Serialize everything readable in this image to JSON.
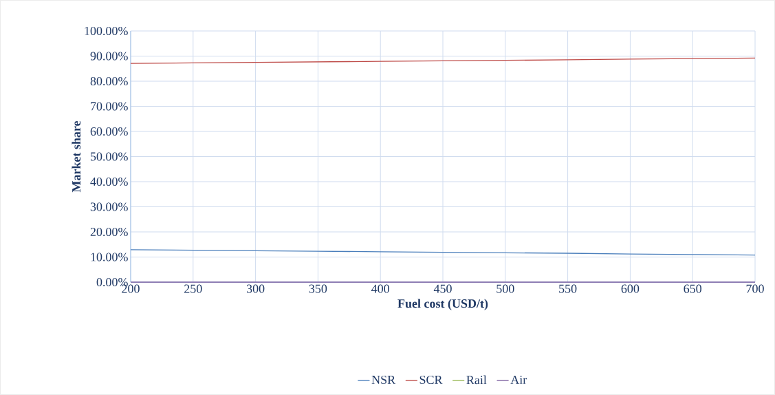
{
  "chart_data": {
    "type": "line",
    "xlabel": "Fuel cost (USD/t)",
    "ylabel": "Market share",
    "x": [
      200,
      250,
      300,
      350,
      400,
      450,
      500,
      550,
      600,
      650,
      700
    ],
    "series": [
      {
        "name": "NSR",
        "color": "#4a7ebb",
        "values": [
          12.9,
          12.7,
          12.5,
          12.3,
          12.1,
          11.9,
          11.7,
          11.5,
          11.2,
          11.0,
          10.8
        ]
      },
      {
        "name": "SCR",
        "color": "#be4b48",
        "values": [
          87.1,
          87.3,
          87.5,
          87.7,
          87.9,
          88.1,
          88.3,
          88.5,
          88.8,
          89.0,
          89.2
        ]
      },
      {
        "name": "Rail",
        "color": "#98b954",
        "values": [
          null,
          null,
          null,
          null,
          null,
          null,
          null,
          null,
          null,
          null,
          null
        ]
      },
      {
        "name": "Air",
        "color": "#7d60a0",
        "values": [
          0,
          0,
          0,
          0,
          0,
          0,
          0,
          0,
          0,
          0,
          0
        ]
      }
    ],
    "xlim": [
      200,
      700
    ],
    "ylim": [
      0,
      100
    ],
    "xticks": [
      200,
      250,
      300,
      350,
      400,
      450,
      500,
      550,
      600,
      650,
      700
    ],
    "yticks": [
      {
        "value": 0,
        "label": "0.00%"
      },
      {
        "value": 10,
        "label": "10.00%"
      },
      {
        "value": 20,
        "label": "20.00%"
      },
      {
        "value": 30,
        "label": "30.00%"
      },
      {
        "value": 40,
        "label": "40.00%"
      },
      {
        "value": 50,
        "label": "50.00%"
      },
      {
        "value": 60,
        "label": "60.00%"
      },
      {
        "value": 70,
        "label": "70.00%"
      },
      {
        "value": 80,
        "label": "80.00%"
      },
      {
        "value": 90,
        "label": "90.00%"
      },
      {
        "value": 100,
        "label": "100.00%"
      }
    ],
    "grid": true,
    "legend": "bottom",
    "marker": "none",
    "line_style": "solid"
  }
}
